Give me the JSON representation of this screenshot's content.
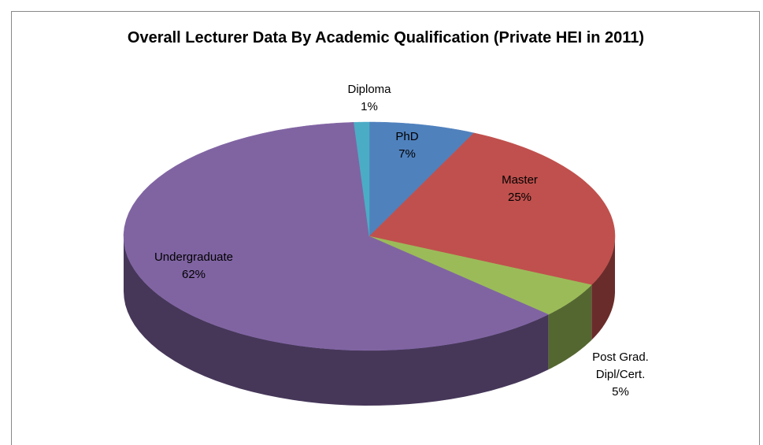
{
  "chart_data": {
    "type": "pie",
    "title": "Overall Lecturer  Data By Academic Qualification (Private HEI in 2011)",
    "categories": [
      "PhD",
      "Master",
      "Post Grad. Dipl/Cert.",
      "Undergraduate",
      "Diploma"
    ],
    "values": [
      7,
      25,
      5,
      62,
      1
    ],
    "value_labels": [
      "7%",
      "25%",
      "5%",
      "62%",
      "1%"
    ],
    "colors": [
      "#4f81bd",
      "#c0504d",
      "#9bbb59",
      "#8064a2",
      "#4bacc6"
    ]
  }
}
